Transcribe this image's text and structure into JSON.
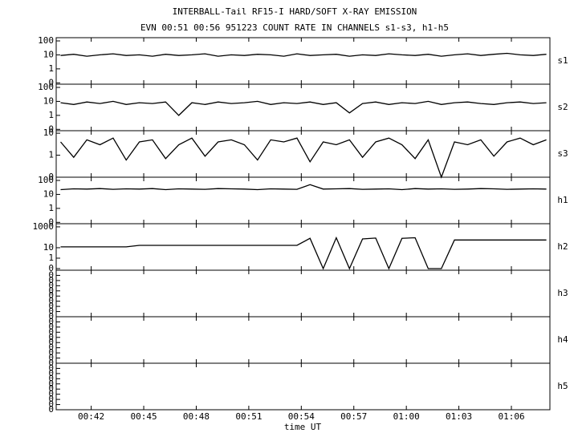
{
  "chart_data": [
    {
      "type": "line",
      "title": "INTERBALL-Tail RF15-I HARD/SOFT X-RAY EMISSION",
      "subtitle": "EVN 00:51 00:56 951223  COUNT RATE IN CHANNELS s1-s3, h1-h5",
      "label": "s1",
      "log": true,
      "color": "#000000",
      "ylim": [
        0.08,
        170
      ],
      "yticks": [
        100,
        10,
        1,
        {
          "value": 0.1,
          "label": "0"
        }
      ],
      "x": [
        40.25,
        41,
        41.75,
        42.5,
        43.25,
        44,
        44.75,
        45.5,
        46.25,
        47,
        47.75,
        48.5,
        49.25,
        50,
        50.75,
        51.5,
        52.25,
        53,
        53.75,
        54.5,
        55.25,
        56,
        56.75,
        57.5,
        58.25,
        59,
        59.75,
        60.5,
        61.25,
        62,
        62.75,
        63.5,
        64.25,
        65,
        65.75,
        66.5,
        67.25,
        68
      ],
      "values": [
        9,
        11,
        8,
        10,
        12,
        9,
        10,
        8,
        11,
        9,
        10,
        12,
        8,
        10,
        9,
        11,
        10,
        8,
        12,
        9,
        10,
        11,
        8,
        10,
        9,
        12,
        10,
        9,
        11,
        8,
        10,
        12,
        9,
        11,
        13,
        10,
        9,
        11
      ]
    },
    {
      "type": "line",
      "label": "s2",
      "log": true,
      "color": "#000000",
      "ylim": [
        0.08,
        170
      ],
      "yticks": [
        100,
        10,
        1,
        {
          "value": 0.1,
          "label": "0"
        }
      ],
      "x": [
        40.25,
        41,
        41.75,
        42.5,
        43.25,
        44,
        44.75,
        45.5,
        46.25,
        47,
        47.75,
        48.5,
        49.25,
        50,
        50.75,
        51.5,
        52.25,
        53,
        53.75,
        54.5,
        55.25,
        56,
        56.75,
        57.5,
        58.25,
        59,
        59.75,
        60.5,
        61.25,
        62,
        62.75,
        63.5,
        64.25,
        65,
        65.75,
        66.5,
        67.25,
        68
      ],
      "values": [
        8,
        6,
        9,
        7,
        10,
        6,
        8,
        7,
        9,
        1,
        8,
        6,
        9,
        7,
        8,
        10,
        6,
        8,
        7,
        9,
        6,
        8,
        1.5,
        7,
        9,
        6,
        8,
        7,
        10,
        6,
        8,
        9,
        7,
        6,
        8,
        9,
        7,
        8
      ]
    },
    {
      "type": "line",
      "label": "s3",
      "log": true,
      "color": "#000000",
      "ylim": [
        0.1,
        13
      ],
      "yticks": [
        10,
        1,
        {
          "value": 0.1,
          "label": "0"
        }
      ],
      "x": [
        40.25,
        41,
        41.75,
        42.5,
        43.25,
        44,
        44.75,
        45.5,
        46.25,
        47,
        47.75,
        48.5,
        49.25,
        50,
        50.75,
        51.5,
        52.25,
        53,
        53.75,
        54.5,
        55.25,
        56,
        56.75,
        57.5,
        58.25,
        59,
        59.75,
        60.5,
        61.25,
        62,
        62.75,
        63.5,
        64.25,
        65,
        65.75,
        66.5,
        67.25,
        68
      ],
      "values": [
        4,
        0.8,
        5,
        3,
        6,
        0.6,
        4,
        5,
        0.7,
        3,
        6,
        0.9,
        4,
        5,
        3,
        0.6,
        5,
        4,
        6,
        0.5,
        4,
        3,
        5,
        0.8,
        4,
        6,
        3,
        0.7,
        5,
        0.1,
        4,
        3,
        5,
        0.9,
        4,
        6,
        3,
        5
      ]
    },
    {
      "type": "line",
      "label": "h1",
      "log": true,
      "color": "#000000",
      "ylim": [
        0.08,
        170
      ],
      "yticks": [
        100,
        10,
        1,
        {
          "value": 0.1,
          "label": "0"
        }
      ],
      "x": [
        40.25,
        41,
        41.75,
        42.5,
        43.25,
        44,
        44.75,
        45.5,
        46.25,
        47,
        47.75,
        48.5,
        49.25,
        50,
        50.75,
        51.5,
        52.25,
        53,
        53.75,
        54.5,
        55.25,
        56,
        56.75,
        57.5,
        58.25,
        59,
        59.75,
        60.5,
        61.25,
        62,
        62.75,
        63.5,
        64.25,
        65,
        65.75,
        66.5,
        67.25,
        68
      ],
      "values": [
        22,
        25,
        24,
        26,
        23,
        25,
        24,
        26,
        22,
        25,
        24,
        23,
        26,
        25,
        24,
        22,
        25,
        24,
        23,
        50,
        24,
        25,
        26,
        23,
        24,
        25,
        22,
        26,
        24,
        25,
        23,
        24,
        26,
        25,
        23,
        24,
        25,
        24
      ]
    },
    {
      "type": "line",
      "label": "h2",
      "log": true,
      "color": "#000000",
      "ylim": [
        0.07,
        2000
      ],
      "yticks": [
        1000,
        10,
        1,
        {
          "value": 0.1,
          "label": "0"
        }
      ],
      "x": [
        40.25,
        41,
        41.75,
        42.5,
        43.25,
        44,
        44.75,
        45.5,
        46.25,
        47,
        47.75,
        48.5,
        49.25,
        50,
        50.75,
        51.5,
        52.25,
        53,
        53.75,
        54.5,
        55.25,
        56,
        56.75,
        57.5,
        58.25,
        59,
        59.75,
        60.5,
        61.25,
        62,
        62.75,
        63.5,
        64.25,
        65,
        65.75,
        66.5,
        67.25,
        68
      ],
      "values": [
        12,
        12,
        12,
        12,
        12,
        12,
        17,
        17,
        17,
        17,
        17,
        17,
        17,
        17,
        17,
        17,
        17,
        17,
        17,
        80,
        0.1,
        90,
        0.1,
        70,
        85,
        0.1,
        80,
        90,
        0.1,
        0.1,
        55,
        55,
        55,
        55,
        55,
        55,
        55,
        55
      ]
    },
    {
      "type": "empty",
      "label": "h3",
      "ylim": [
        0,
        0.45
      ],
      "yticks": [
        0,
        {
          "value": 0.05,
          "label": "0"
        },
        {
          "value": 0.1,
          "label": "0"
        },
        {
          "value": 0.15,
          "label": "0"
        },
        {
          "value": 0.2,
          "label": "0"
        },
        {
          "value": 0.25,
          "label": "0"
        },
        {
          "value": 0.3,
          "label": "0"
        },
        {
          "value": 0.35,
          "label": "0"
        },
        {
          "value": 0.4,
          "label": "0"
        }
      ]
    },
    {
      "type": "empty",
      "label": "h4",
      "ylim": [
        0,
        0.45
      ],
      "yticks": [
        0,
        {
          "value": 0.05,
          "label": "0"
        },
        {
          "value": 0.1,
          "label": "0"
        },
        {
          "value": 0.15,
          "label": "0"
        },
        {
          "value": 0.2,
          "label": "0"
        },
        {
          "value": 0.25,
          "label": "0"
        },
        {
          "value": 0.3,
          "label": "0"
        },
        {
          "value": 0.35,
          "label": "0"
        },
        {
          "value": 0.4,
          "label": "0"
        }
      ]
    },
    {
      "type": "empty",
      "label": "h5",
      "ylim": [
        0,
        0.45
      ],
      "yticks": [
        0,
        {
          "value": 0.05,
          "label": "0"
        },
        {
          "value": 0.1,
          "label": "0"
        },
        {
          "value": 0.15,
          "label": "0"
        },
        {
          "value": 0.2,
          "label": "0"
        },
        {
          "value": 0.25,
          "label": "0"
        },
        {
          "value": 0.3,
          "label": "0"
        },
        {
          "value": 0.35,
          "label": "0"
        },
        {
          "value": 0.4,
          "label": "0"
        }
      ],
      "xlabel": "time UT",
      "xlim": [
        40,
        68.2
      ],
      "xticks": [
        {
          "value": 42,
          "label": "00:42"
        },
        {
          "value": 45,
          "label": "00:45"
        },
        {
          "value": 48,
          "label": "00:48"
        },
        {
          "value": 51,
          "label": "00:51"
        },
        {
          "value": 54,
          "label": "00:54"
        },
        {
          "value": 57,
          "label": "00:57"
        },
        {
          "value": 60,
          "label": "01:00"
        },
        {
          "value": 63,
          "label": "01:03"
        },
        {
          "value": 66,
          "label": "01:06"
        }
      ]
    }
  ]
}
